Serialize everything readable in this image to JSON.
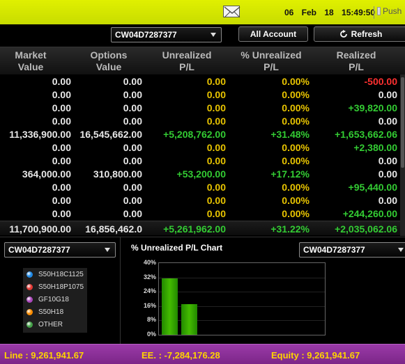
{
  "topbar": {
    "date": "06 Feb 18",
    "time": "15:49:50",
    "push_label": "Push"
  },
  "controls": {
    "account_select": "CW04D7287377",
    "all_account_label": "All Account",
    "refresh_label": "Refresh"
  },
  "table": {
    "headers": [
      [
        "Market",
        "Value"
      ],
      [
        "Options",
        "Value"
      ],
      [
        "Unrealized",
        "P/L"
      ],
      [
        "% Unrealized",
        "P/L"
      ],
      [
        "Realized",
        "P/L"
      ]
    ],
    "rows": [
      [
        "0.00",
        "0.00",
        "0.00",
        "0.00%",
        "-500.00"
      ],
      [
        "0.00",
        "0.00",
        "0.00",
        "0.00%",
        "0.00"
      ],
      [
        "0.00",
        "0.00",
        "0.00",
        "0.00%",
        "+39,820.00"
      ],
      [
        "0.00",
        "0.00",
        "0.00",
        "0.00%",
        "0.00"
      ],
      [
        "11,336,900.00",
        "16,545,662.00",
        "+5,208,762.00",
        "+31.48%",
        "+1,653,662.06"
      ],
      [
        "0.00",
        "0.00",
        "0.00",
        "0.00%",
        "+2,380.00"
      ],
      [
        "0.00",
        "0.00",
        "0.00",
        "0.00%",
        "0.00"
      ],
      [
        "364,000.00",
        "310,800.00",
        "+53,200.00",
        "+17.12%",
        "0.00"
      ],
      [
        "0.00",
        "0.00",
        "0.00",
        "0.00%",
        "+95,440.00"
      ],
      [
        "0.00",
        "0.00",
        "0.00",
        "0.00%",
        "0.00"
      ],
      [
        "0.00",
        "0.00",
        "0.00",
        "0.00%",
        "+244,260.00"
      ]
    ],
    "total": [
      "11,700,900.00",
      "16,856,462.0",
      "+5,261,962.00",
      "+31.22%",
      "+2,035,062.06"
    ]
  },
  "left_panel": {
    "account_select": "CW04D7287377",
    "legend": [
      {
        "label": "S50H18C1125",
        "color": "#1e88e5"
      },
      {
        "label": "S50H18P1075",
        "color": "#e53935"
      },
      {
        "label": "GF10G18",
        "color": "#ab47bc"
      },
      {
        "label": "S50H18",
        "color": "#fb8c00"
      },
      {
        "label": "OTHER",
        "color": "#43a047"
      }
    ]
  },
  "chart_panel": {
    "account_select": "CW04D7287377"
  },
  "chart_data": {
    "type": "bar",
    "title": "% Unrealized P/L Chart",
    "categories": [
      "",
      ""
    ],
    "values": [
      31.48,
      17.12
    ],
    "ylim": [
      0,
      40
    ],
    "yticks": [
      "0%",
      "8%",
      "16%",
      "24%",
      "32%",
      "40%"
    ],
    "color": "#33bb00"
  },
  "footer": {
    "line": "Line : 9,261,941.67",
    "ee": "EE. : -7,284,176.28",
    "equity": "Equity : 9,261,941.67"
  }
}
